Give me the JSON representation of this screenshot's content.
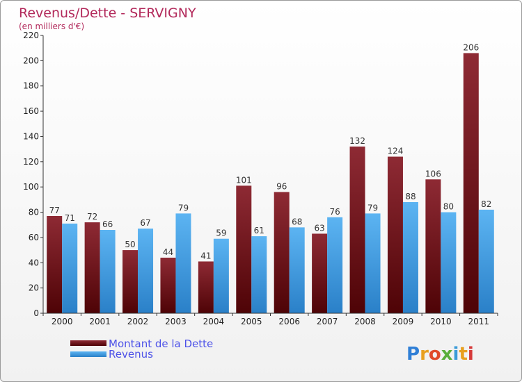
{
  "chart_data": {
    "type": "bar",
    "title": "Revenus/Dette - SERVIGNY",
    "subtitle": "(en milliers d'€)",
    "categories": [
      "2000",
      "2001",
      "2002",
      "2003",
      "2004",
      "2005",
      "2006",
      "2007",
      "2008",
      "2009",
      "2010",
      "2011"
    ],
    "series": [
      {
        "name": "Montant de la Dette",
        "values": [
          77,
          72,
          50,
          44,
          41,
          101,
          96,
          63,
          132,
          124,
          106,
          206
        ],
        "color": "#7a1a22"
      },
      {
        "name": "Revenus",
        "values": [
          71,
          66,
          67,
          79,
          59,
          61,
          68,
          76,
          79,
          88,
          80,
          82
        ],
        "color": "#4aa6ea"
      }
    ],
    "ylim": [
      0,
      220
    ],
    "yticks": [
      0,
      20,
      40,
      60,
      80,
      100,
      120,
      140,
      160,
      180,
      200,
      220
    ],
    "grid": false,
    "legend_position": "bottom-left"
  },
  "logo": {
    "text": "Proxiti"
  }
}
